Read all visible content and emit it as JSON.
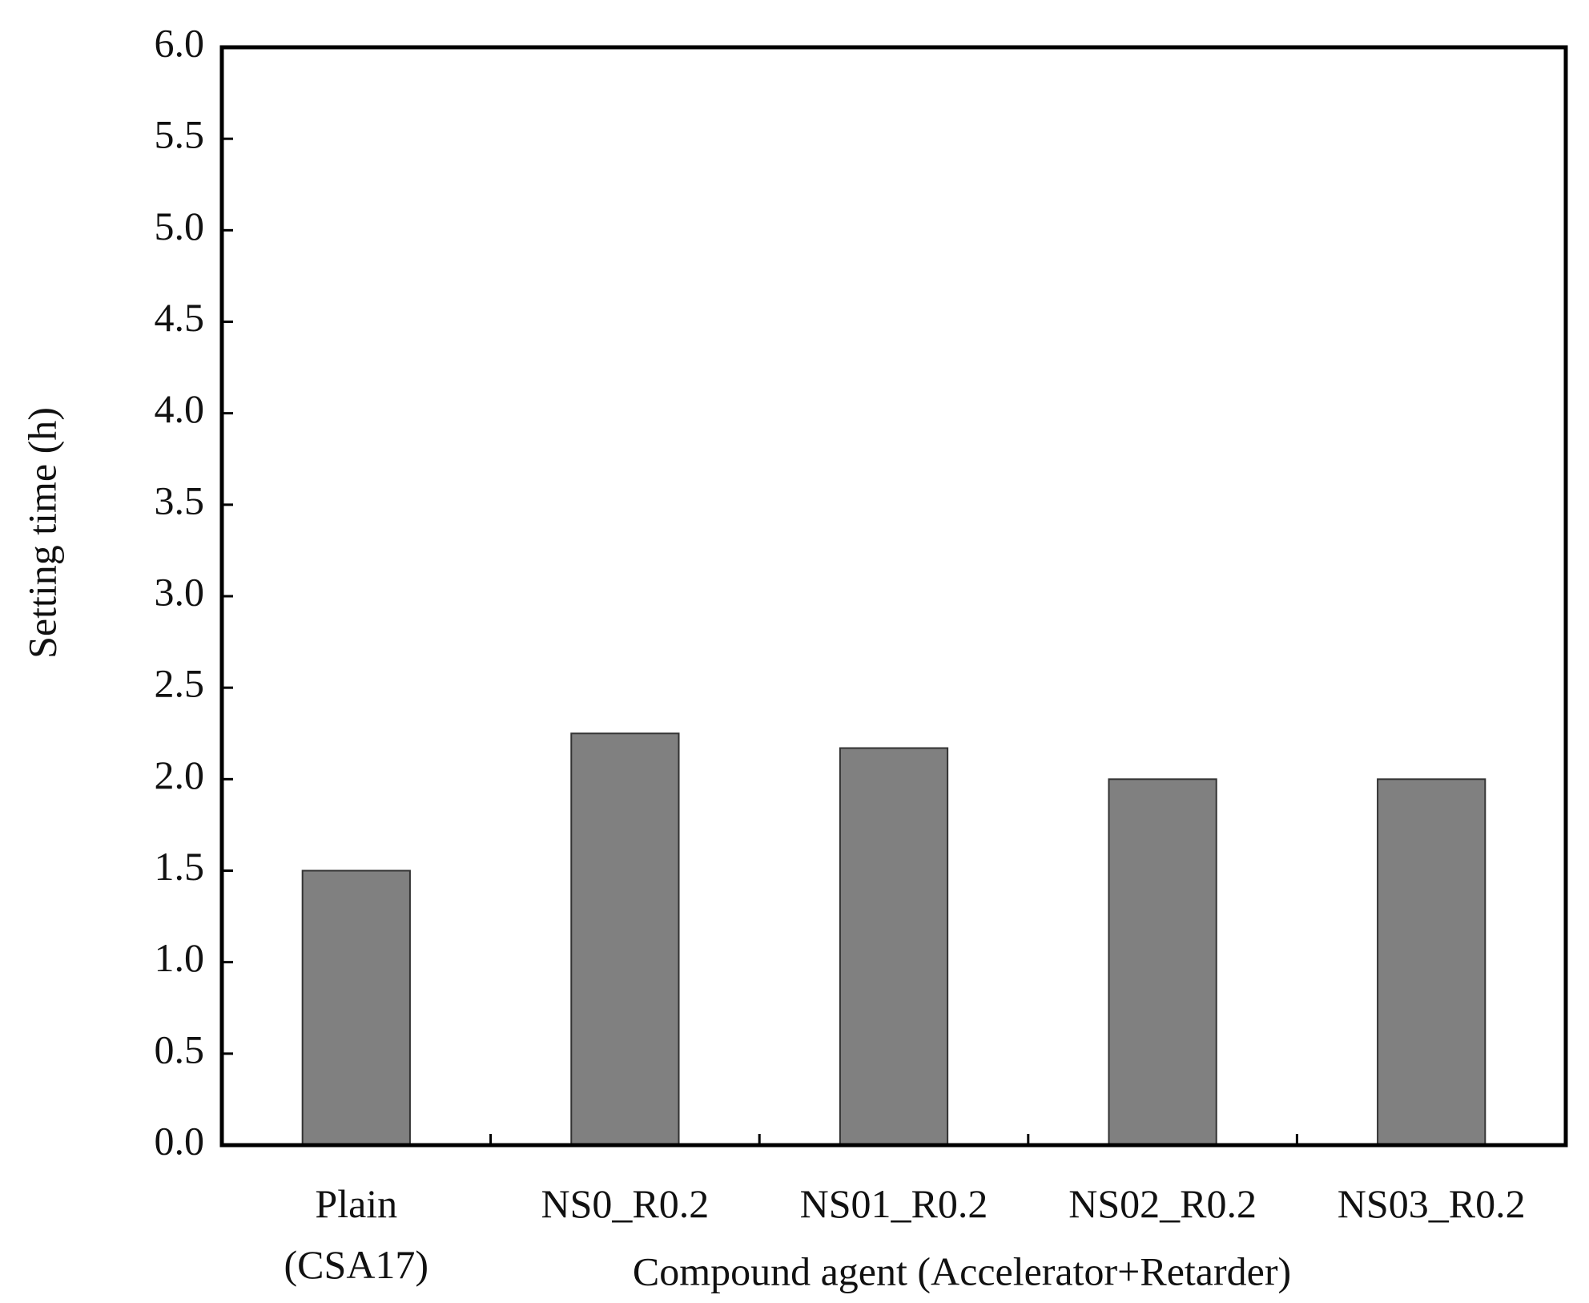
{
  "chart_data": {
    "type": "bar",
    "categories": [
      "Plain\n(CSA17)",
      "NS0_R0.2",
      "NS01_R0.2",
      "NS02_R0.2",
      "NS03_R0.2"
    ],
    "values": [
      1.5,
      2.25,
      2.17,
      2.0,
      2.0
    ],
    "color": "#808080",
    "xlabel": "Compound agent (Accelerator+Retarder)",
    "ylabel": "Setting time (h)",
    "ylim": [
      0,
      6
    ],
    "yticks": [
      {
        "value": 0,
        "label": "0.0"
      },
      0.5,
      {
        "value": 1,
        "label": "1.0"
      },
      1.5,
      {
        "value": 2,
        "label": "2.0"
      },
      2.5,
      {
        "value": 3,
        "label": "3.0"
      },
      3.5,
      {
        "value": 4,
        "label": "4.0"
      },
      4.5,
      {
        "value": 5,
        "label": "5.0"
      },
      5.5,
      {
        "value": 6,
        "label": "6.0"
      }
    ],
    "grid": false
  }
}
